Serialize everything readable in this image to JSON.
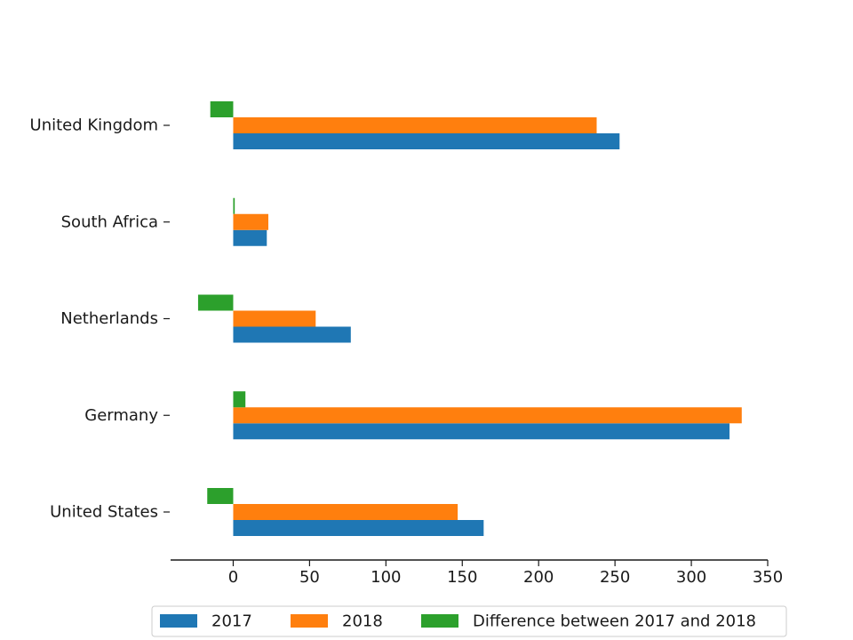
{
  "chart_data": {
    "type": "bar",
    "orientation": "horizontal",
    "categories": [
      "United States",
      "Germany",
      "Netherlands",
      "South Africa",
      "United Kingdom"
    ],
    "series": [
      {
        "name": "2017",
        "color": "#1f77b4",
        "values": [
          164,
          325,
          77,
          22,
          253
        ]
      },
      {
        "name": "2018",
        "color": "#ff7f0e",
        "values": [
          147,
          333,
          54,
          23,
          238
        ]
      },
      {
        "name": "Difference between 2017 and 2018",
        "color": "#2ca02c",
        "values": [
          -17,
          8,
          -23,
          1,
          -15
        ]
      }
    ],
    "x_ticks": [
      0,
      50,
      100,
      150,
      200,
      250,
      300,
      350
    ],
    "xlim": [
      -41,
      350
    ],
    "grid": false,
    "legend_position": "bottom-center"
  }
}
